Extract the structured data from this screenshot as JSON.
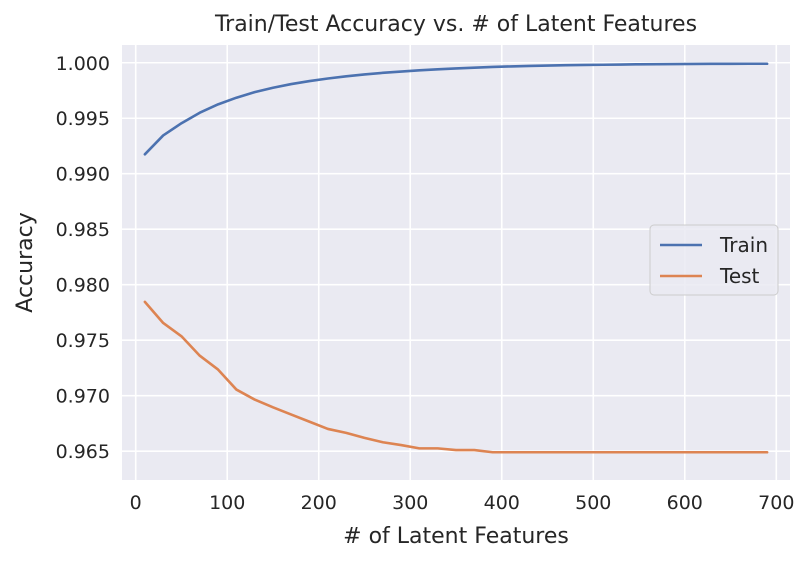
{
  "chart_data": {
    "type": "line",
    "title": "Train/Test Accuracy vs. # of Latent Features",
    "xlabel": "# of Latent Features",
    "ylabel": "Accuracy",
    "xlim": [
      -15,
      715
    ],
    "ylim": [
      0.9624,
      1.0016
    ],
    "xticks": [
      0,
      100,
      200,
      300,
      400,
      500,
      600,
      700
    ],
    "xtick_labels": [
      "0",
      "100",
      "200",
      "300",
      "400",
      "500",
      "600",
      "700"
    ],
    "yticks": [
      0.965,
      0.97,
      0.975,
      0.98,
      0.985,
      0.99,
      0.995,
      1.0
    ],
    "ytick_labels": [
      "0.965",
      "0.970",
      "0.975",
      "0.980",
      "0.985",
      "0.990",
      "0.995",
      "1.000"
    ],
    "grid": true,
    "legend_position": "center-right",
    "background_color": "#eaeaf2",
    "x": [
      10,
      30,
      50,
      70,
      90,
      110,
      130,
      150,
      170,
      190,
      210,
      230,
      250,
      270,
      290,
      310,
      330,
      350,
      370,
      390,
      410,
      430,
      450,
      470,
      490,
      510,
      530,
      550,
      570,
      590,
      610,
      630,
      650,
      670,
      690
    ],
    "series": [
      {
        "name": "Train",
        "color": "#4c72b0",
        "values": [
          0.99175,
          0.99345,
          0.99455,
          0.9955,
          0.99625,
          0.99685,
          0.99735,
          0.99775,
          0.99808,
          0.99835,
          0.99858,
          0.99878,
          0.99895,
          0.99909,
          0.99921,
          0.99932,
          0.99941,
          0.99949,
          0.99956,
          0.99962,
          0.99967,
          0.99971,
          0.99975,
          0.99978,
          0.9998,
          0.99982,
          0.99984,
          0.99986,
          0.99987,
          0.99988,
          0.99989,
          0.9999,
          0.9999,
          0.99991,
          0.99991
        ]
      },
      {
        "name": "Test",
        "color": "#dd8452",
        "values": [
          0.97845,
          0.97655,
          0.97535,
          0.9736,
          0.97235,
          0.97055,
          0.96965,
          0.96895,
          0.9683,
          0.96765,
          0.967,
          0.96665,
          0.9662,
          0.9658,
          0.96555,
          0.96525,
          0.96525,
          0.9651,
          0.9651,
          0.9649,
          0.9649,
          0.9649,
          0.9649,
          0.9649,
          0.9649,
          0.9649,
          0.9649,
          0.9649,
          0.9649,
          0.9649,
          0.9649,
          0.9649,
          0.9649,
          0.9649,
          0.9649
        ]
      }
    ]
  }
}
